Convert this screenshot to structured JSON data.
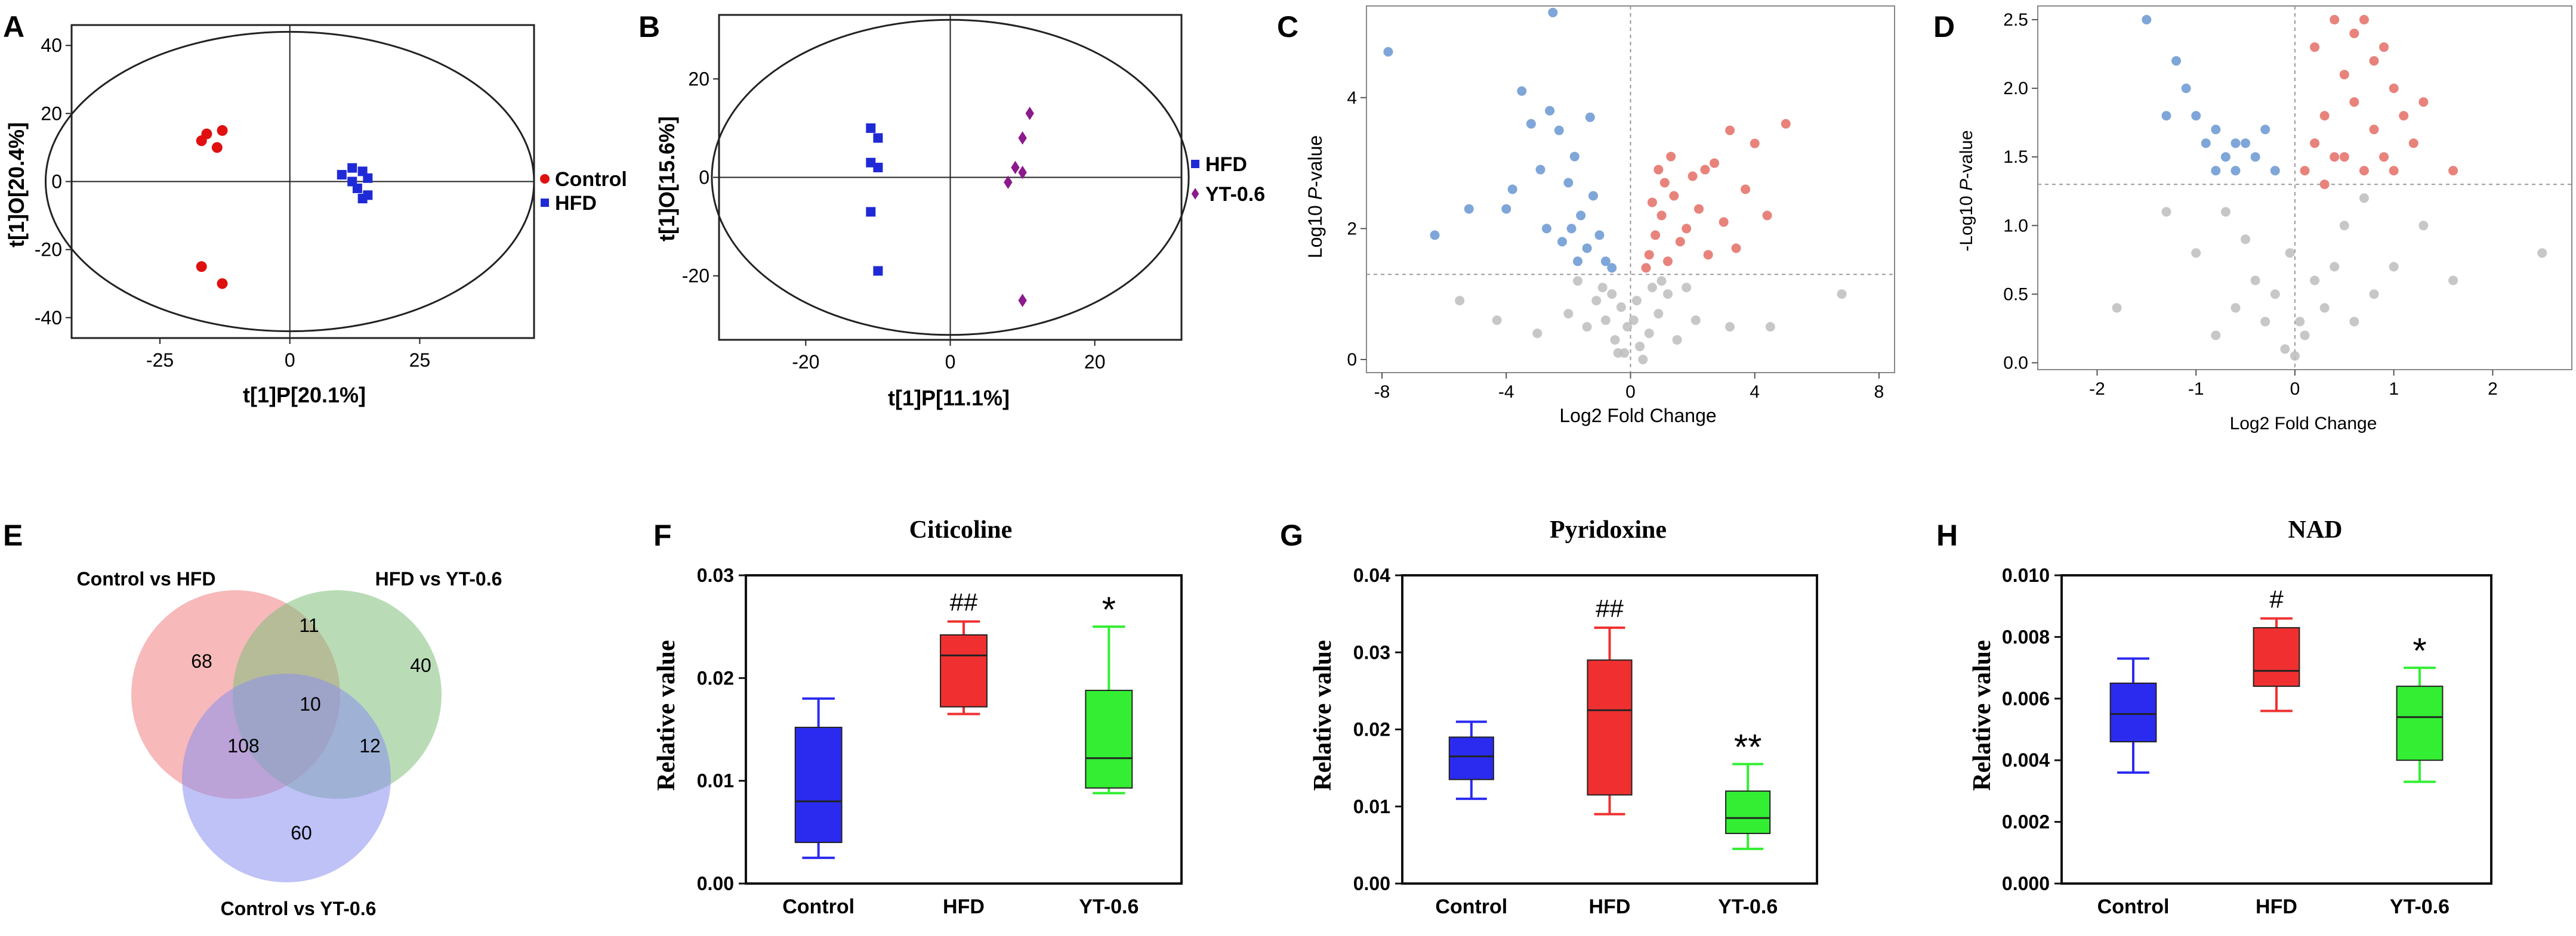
{
  "panels": {
    "A": {
      "label": "A",
      "chart_data": {
        "type": "scatter",
        "xlabel": "t[1]P[20.1%]",
        "ylabel": "t[1]O[20.4%]",
        "xlim": [
          -42,
          47
        ],
        "ylim": [
          -46,
          46
        ],
        "xticks": [
          -25,
          0,
          25
        ],
        "yticks": [
          40,
          20,
          0,
          -20,
          -40
        ],
        "ellipse": {
          "rx": 47,
          "ry": 44
        },
        "series": [
          {
            "name": "Control",
            "color": "#e01010",
            "marker": "circle",
            "points": [
              [
                -16,
                14
              ],
              [
                -13,
                15
              ],
              [
                -14,
                10
              ],
              [
                -17,
                12
              ],
              [
                -17,
                -25
              ],
              [
                -13,
                -30
              ]
            ]
          },
          {
            "name": "HFD",
            "color": "#1f2ad6",
            "marker": "square",
            "points": [
              [
                10,
                2
              ],
              [
                12,
                4
              ],
              [
                14,
                3
              ],
              [
                15,
                1
              ],
              [
                12,
                0
              ],
              [
                13,
                -2
              ],
              [
                15,
                -4
              ],
              [
                14,
                -5
              ]
            ]
          }
        ],
        "legend": [
          "Control",
          "HFD"
        ]
      }
    },
    "B": {
      "label": "B",
      "chart_data": {
        "type": "scatter",
        "xlabel": "t[1]P[11.1%]",
        "ylabel": "t[1]O[15.6%]",
        "xlim": [
          -32,
          32
        ],
        "ylim": [
          -33,
          33
        ],
        "xticks": [
          -20,
          0,
          20
        ],
        "yticks": [
          20,
          0,
          -20
        ],
        "ellipse": {
          "rx": 33,
          "ry": 32
        },
        "series": [
          {
            "name": "HFD",
            "color": "#1f2ad6",
            "marker": "square",
            "points": [
              [
                -11,
                10
              ],
              [
                -10,
                8
              ],
              [
                -11,
                3
              ],
              [
                -10,
                2
              ],
              [
                -11,
                -7
              ],
              [
                -10,
                -19
              ]
            ]
          },
          {
            "name": "YT-0.6",
            "color": "#8b1a8b",
            "marker": "diamond",
            "points": [
              [
                11,
                13
              ],
              [
                10,
                8
              ],
              [
                9,
                2
              ],
              [
                10,
                1
              ],
              [
                8,
                -1
              ],
              [
                10,
                -25
              ]
            ]
          }
        ],
        "legend": [
          "HFD",
          "YT-0.6"
        ]
      }
    },
    "C": {
      "label": "C",
      "chart_data": {
        "type": "scatter",
        "subtype": "volcano",
        "xlabel": "Log2 Fold Change",
        "ylabel_pre": "Log10 ",
        "ylabel_italic": "P",
        "ylabel_post": "-value",
        "xlim": [
          -8.5,
          8.5
        ],
        "ylim": [
          -0.2,
          5.4
        ],
        "xticks": [
          -8,
          -4,
          0,
          4,
          8
        ],
        "yticks": [
          0,
          2,
          4
        ],
        "threshold_y": 1.3,
        "up_color": "#e8837c",
        "down_color": "#7fa6d8",
        "ns_color": "#bdbdbd",
        "up_points": [
          [
            0.5,
            1.4
          ],
          [
            0.6,
            1.6
          ],
          [
            0.8,
            1.9
          ],
          [
            1.0,
            2.2
          ],
          [
            1.2,
            1.5
          ],
          [
            1.4,
            2.5
          ],
          [
            1.6,
            1.8
          ],
          [
            1.8,
            2.0
          ],
          [
            2.0,
            2.8
          ],
          [
            2.2,
            2.3
          ],
          [
            2.5,
            1.6
          ],
          [
            2.7,
            3.0
          ],
          [
            3.0,
            2.1
          ],
          [
            3.2,
            3.5
          ],
          [
            3.4,
            1.7
          ],
          [
            3.7,
            2.6
          ],
          [
            4.0,
            3.3
          ],
          [
            4.4,
            2.2
          ],
          [
            5.0,
            3.6
          ],
          [
            0.9,
            2.9
          ],
          [
            1.3,
            3.1
          ],
          [
            1.1,
            2.7
          ],
          [
            0.7,
            2.4
          ],
          [
            2.4,
            2.9
          ]
        ],
        "down_points": [
          [
            -7.8,
            4.7
          ],
          [
            -6.3,
            1.9
          ],
          [
            -5.2,
            2.3
          ],
          [
            -4.0,
            2.3
          ],
          [
            -3.8,
            2.6
          ],
          [
            -3.5,
            4.1
          ],
          [
            -3.2,
            3.6
          ],
          [
            -2.9,
            2.9
          ],
          [
            -2.6,
            3.8
          ],
          [
            -2.5,
            5.3
          ],
          [
            -2.3,
            3.5
          ],
          [
            -2.0,
            2.7
          ],
          [
            -1.8,
            3.1
          ],
          [
            -1.6,
            2.2
          ],
          [
            -1.4,
            1.7
          ],
          [
            -1.2,
            2.5
          ],
          [
            -1.0,
            1.9
          ],
          [
            -0.8,
            1.5
          ],
          [
            -0.6,
            1.4
          ],
          [
            -1.7,
            1.5
          ],
          [
            -1.9,
            2.0
          ],
          [
            -2.2,
            1.8
          ],
          [
            -1.3,
            3.7
          ],
          [
            -2.7,
            2.0
          ]
        ],
        "ns_points": [
          [
            -0.2,
            0.1
          ],
          [
            0.3,
            0.2
          ],
          [
            -0.5,
            0.3
          ],
          [
            0.6,
            0.4
          ],
          [
            -0.8,
            0.6
          ],
          [
            0.9,
            0.7
          ],
          [
            -1.1,
            0.9
          ],
          [
            1.2,
            1.0
          ],
          [
            -1.4,
            0.5
          ],
          [
            1.5,
            0.3
          ],
          [
            -0.3,
            0.8
          ],
          [
            0.2,
            0.9
          ],
          [
            -2.0,
            0.7
          ],
          [
            2.1,
            0.6
          ],
          [
            -0.9,
            1.1
          ],
          [
            1.0,
            1.2
          ],
          [
            -3.0,
            0.4
          ],
          [
            3.2,
            0.5
          ],
          [
            -0.1,
            0.5
          ],
          [
            0.1,
            0.6
          ],
          [
            -0.6,
            1.0
          ],
          [
            0.7,
            1.1
          ],
          [
            -1.7,
            1.2
          ],
          [
            1.8,
            1.1
          ],
          [
            4.5,
            0.5
          ],
          [
            -4.3,
            0.6
          ],
          [
            6.8,
            1.0
          ],
          [
            -5.5,
            0.9
          ],
          [
            0.4,
            0.0
          ],
          [
            -0.4,
            0.1
          ]
        ]
      }
    },
    "D": {
      "label": "D",
      "chart_data": {
        "type": "scatter",
        "subtype": "volcano",
        "xlabel": "Log2 Fold Change",
        "ylabel_pre": "-Log10 ",
        "ylabel_italic": "P",
        "ylabel_post": "-value",
        "xlim": [
          -2.6,
          2.8
        ],
        "ylim": [
          -0.05,
          2.6
        ],
        "xticks": [
          -2,
          -1,
          0,
          1,
          2
        ],
        "yticks": [
          0.0,
          0.5,
          1.0,
          1.5,
          2.0,
          2.5
        ],
        "threshold_y": 1.3,
        "up_color": "#e8837c",
        "down_color": "#7fa6d8",
        "ns_color": "#bdbdbd",
        "up_points": [
          [
            0.1,
            1.4
          ],
          [
            0.2,
            1.6
          ],
          [
            0.2,
            2.3
          ],
          [
            0.3,
            1.8
          ],
          [
            0.4,
            2.5
          ],
          [
            0.5,
            1.5
          ],
          [
            0.5,
            2.1
          ],
          [
            0.6,
            1.9
          ],
          [
            0.6,
            2.4
          ],
          [
            0.7,
            1.4
          ],
          [
            0.7,
            2.5
          ],
          [
            0.8,
            1.7
          ],
          [
            0.8,
            2.2
          ],
          [
            0.9,
            1.5
          ],
          [
            1.0,
            2.0
          ],
          [
            1.0,
            1.4
          ],
          [
            1.2,
            1.6
          ],
          [
            1.3,
            1.9
          ],
          [
            1.6,
            1.4
          ],
          [
            0.3,
            1.3
          ],
          [
            0.9,
            2.3
          ],
          [
            0.4,
            1.5
          ],
          [
            1.1,
            1.8
          ]
        ],
        "down_points": [
          [
            -1.5,
            2.5
          ],
          [
            -1.2,
            2.2
          ],
          [
            -1.1,
            2.0
          ],
          [
            -1.0,
            1.8
          ],
          [
            -0.9,
            1.6
          ],
          [
            -0.8,
            1.7
          ],
          [
            -0.7,
            1.5
          ],
          [
            -0.6,
            1.4
          ],
          [
            -0.5,
            1.6
          ],
          [
            -0.4,
            1.5
          ],
          [
            -0.3,
            1.7
          ],
          [
            -0.2,
            1.4
          ],
          [
            -0.8,
            1.4
          ],
          [
            -0.6,
            1.6
          ],
          [
            -1.3,
            1.8
          ]
        ],
        "ns_points": [
          [
            -0.1,
            0.1
          ],
          [
            0.1,
            0.2
          ],
          [
            -0.3,
            0.3
          ],
          [
            0.3,
            0.4
          ],
          [
            -0.4,
            0.6
          ],
          [
            0.4,
            0.7
          ],
          [
            -0.5,
            0.9
          ],
          [
            0.5,
            1.0
          ],
          [
            -0.7,
            1.1
          ],
          [
            0.7,
            1.2
          ],
          [
            -0.2,
            0.5
          ],
          [
            0.2,
            0.6
          ],
          [
            -1.0,
            0.8
          ],
          [
            1.0,
            0.7
          ],
          [
            -0.6,
            0.4
          ],
          [
            0.6,
            0.3
          ],
          [
            -1.3,
            1.1
          ],
          [
            1.3,
            1.0
          ],
          [
            2.5,
            0.8
          ],
          [
            -1.8,
            0.4
          ],
          [
            0.0,
            0.05
          ],
          [
            0.05,
            0.3
          ],
          [
            -0.05,
            0.8
          ],
          [
            0.8,
            0.5
          ],
          [
            -0.8,
            0.2
          ],
          [
            1.6,
            0.6
          ]
        ]
      }
    },
    "E": {
      "label": "E",
      "chart_data": {
        "type": "venn",
        "sets": [
          "Control vs HFD",
          "HFD vs YT-0.6",
          "Control vs YT-0.6"
        ],
        "colors": [
          "#f08080",
          "#7fbf7b",
          "#8a8ff0"
        ],
        "regions": {
          "only_1": "68",
          "only_2": "40",
          "only_3": "60",
          "1_and_2": "11",
          "1_and_3": "108",
          "2_and_3": "12",
          "all": "10"
        }
      }
    },
    "F": {
      "label": "F",
      "chart_data": {
        "type": "box",
        "title": "Citicoline",
        "ylabel": "Relative value",
        "ylim": [
          0,
          0.03
        ],
        "yticks": [
          "0.00",
          "0.01",
          "0.02",
          "0.03"
        ],
        "ytick_values": [
          0,
          0.01,
          0.02,
          0.03
        ],
        "categories": [
          "Control",
          "HFD",
          "YT-0.6"
        ],
        "colors": [
          "#2b2bf0",
          "#f03030",
          "#33ee33"
        ],
        "boxes": [
          {
            "min": 0.0025,
            "q1": 0.004,
            "median": 0.008,
            "q3": 0.0152,
            "max": 0.018
          },
          {
            "min": 0.0165,
            "q1": 0.0172,
            "median": 0.0222,
            "q3": 0.0242,
            "max": 0.0255
          },
          {
            "min": 0.0088,
            "q1": 0.0093,
            "median": 0.0122,
            "q3": 0.0188,
            "max": 0.025
          }
        ],
        "annotations": [
          "",
          "##",
          "*"
        ]
      }
    },
    "G": {
      "label": "G",
      "chart_data": {
        "type": "box",
        "title": "Pyridoxine",
        "ylabel": "Relative value",
        "ylim": [
          0,
          0.04
        ],
        "yticks": [
          "0.00",
          "0.01",
          "0.02",
          "0.03",
          "0.04"
        ],
        "ytick_values": [
          0,
          0.01,
          0.02,
          0.03,
          0.04
        ],
        "categories": [
          "Control",
          "HFD",
          "YT-0.6"
        ],
        "colors": [
          "#2b2bf0",
          "#f03030",
          "#33ee33"
        ],
        "boxes": [
          {
            "min": 0.011,
            "q1": 0.0135,
            "median": 0.0165,
            "q3": 0.019,
            "max": 0.021
          },
          {
            "min": 0.009,
            "q1": 0.0115,
            "median": 0.0225,
            "q3": 0.029,
            "max": 0.0332
          },
          {
            "min": 0.0045,
            "q1": 0.0065,
            "median": 0.0085,
            "q3": 0.012,
            "max": 0.0155
          }
        ],
        "annotations": [
          "",
          "##",
          "**"
        ]
      }
    },
    "H": {
      "label": "H",
      "chart_data": {
        "type": "box",
        "title": "NAD",
        "ylabel": "Relative value",
        "ylim": [
          0,
          0.01
        ],
        "yticks": [
          "0.000",
          "0.002",
          "0.004",
          "0.006",
          "0.008",
          "0.010"
        ],
        "ytick_values": [
          0,
          0.002,
          0.004,
          0.006,
          0.008,
          0.01
        ],
        "categories": [
          "Control",
          "HFD",
          "YT-0.6"
        ],
        "colors": [
          "#2b2bf0",
          "#f03030",
          "#33ee33"
        ],
        "boxes": [
          {
            "min": 0.0036,
            "q1": 0.0046,
            "median": 0.0055,
            "q3": 0.0065,
            "max": 0.0073
          },
          {
            "min": 0.0056,
            "q1": 0.0064,
            "median": 0.0069,
            "q3": 0.0083,
            "max": 0.0086
          },
          {
            "min": 0.0033,
            "q1": 0.004,
            "median": 0.0054,
            "q3": 0.0064,
            "max": 0.007
          }
        ],
        "annotations": [
          "",
          "#",
          "*"
        ]
      }
    }
  }
}
